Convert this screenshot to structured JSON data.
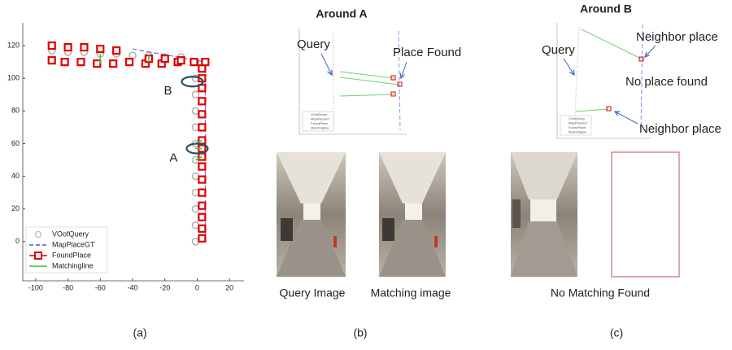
{
  "chart_data": {
    "type": "trajectory",
    "xlim": [
      -108,
      29
    ],
    "ylim": [
      -24,
      134
    ],
    "xticks": [
      -100,
      -80,
      -60,
      -40,
      -20,
      0,
      20
    ],
    "yticks": [
      0,
      20,
      40,
      60,
      80,
      100,
      120
    ],
    "legend": "lower left",
    "annotations": [
      "A",
      "B"
    ],
    "series": [
      {
        "name": "VOofQuery",
        "color": "#b0b0b0",
        "line": "none",
        "marker": "circle",
        "x": [
          -1,
          -1,
          -1,
          -1,
          -1,
          -1,
          -1,
          -1,
          -1,
          -1,
          -1,
          -1,
          -10,
          -20,
          -30,
          -40,
          -50,
          -60,
          -70,
          -80,
          -90
        ],
        "y": [
          0,
          10,
          20,
          30,
          40,
          50,
          60,
          70,
          80,
          90,
          100,
          110,
          113,
          113,
          114,
          114,
          115,
          115,
          116,
          116,
          117
        ]
      },
      {
        "name": "MapPlaceGT",
        "color": "#4a5bd4",
        "line": "dashed",
        "marker": "none",
        "x": [
          5,
          5,
          -40
        ],
        "y": [
          0,
          110,
          118
        ]
      },
      {
        "name": "FoundPlace",
        "color": "#e00000",
        "line": "none",
        "marker": "square",
        "x": [
          3,
          3,
          3,
          3,
          3,
          3,
          3,
          3,
          3,
          3,
          3,
          3,
          3,
          3,
          3,
          3,
          5,
          -2,
          -12,
          -22,
          -32,
          -42,
          -52,
          -62,
          -72,
          -82,
          -90,
          -90,
          -80,
          -70,
          -60,
          -50,
          -30,
          -20,
          -10
        ],
        "y": [
          2,
          8,
          15,
          22,
          30,
          38,
          46,
          52,
          57,
          62,
          70,
          78,
          86,
          94,
          100,
          106,
          110,
          110,
          110,
          109,
          109,
          110,
          109,
          109,
          110,
          110,
          111,
          120,
          119,
          119,
          118,
          117,
          112,
          112,
          111
        ]
      },
      {
        "name": "Matchingline",
        "color": "#33cc33",
        "line": "solid",
        "marker": "none",
        "x": [
          -1,
          3,
          null,
          -1,
          3,
          null,
          -30,
          -30,
          null,
          -60,
          -60,
          null,
          -1,
          3
        ],
        "y": [
          57,
          57,
          null,
          60,
          62,
          null,
          114,
          110,
          null,
          115,
          109,
          null,
          50,
          52
        ]
      }
    ]
  },
  "panel_labels": [
    "(a)",
    "(b)",
    "(c)"
  ],
  "panel_b": {
    "title": "Around A",
    "annotations": [
      "Query",
      "Place Found"
    ],
    "captions": [
      "Query Image",
      "Matching image"
    ]
  },
  "panel_c": {
    "title": "Around B",
    "annotations": [
      "Query",
      "Neighbor place",
      "No place found",
      "Neighbor place"
    ],
    "captions": [
      "No Matching Found"
    ]
  }
}
